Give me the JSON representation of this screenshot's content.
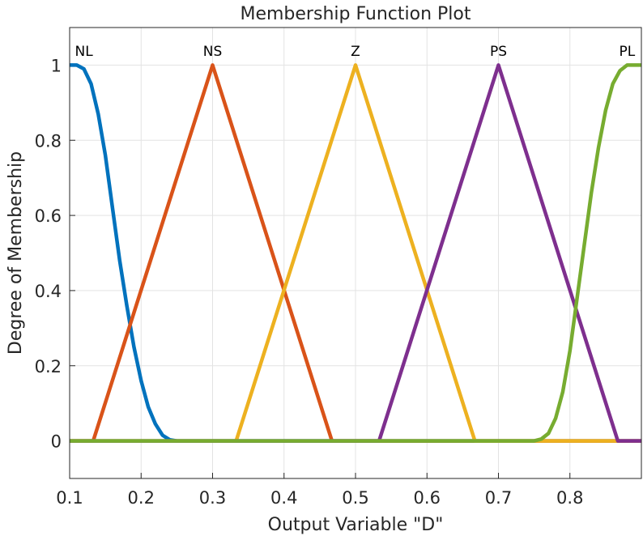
{
  "chart_data": {
    "type": "line",
    "title": "Membership Function Plot",
    "xlabel": "Output Variable \"D\"",
    "ylabel": "Degree of Membership",
    "xlim": [
      0.1,
      0.9
    ],
    "ylim": [
      -0.1,
      1.1
    ],
    "xticks": [
      "0.1",
      "0.2",
      "0.3",
      "0.4",
      "0.5",
      "0.6",
      "0.7",
      "0.8"
    ],
    "yticks": [
      "0",
      "0.2",
      "0.4",
      "0.6",
      "0.8",
      "1"
    ],
    "grid": true,
    "series": [
      {
        "name": "NL",
        "color": "#0072BD",
        "x": [
          0.1,
          0.11,
          0.12,
          0.13,
          0.14,
          0.15,
          0.16,
          0.17,
          0.18,
          0.19,
          0.2,
          0.21,
          0.22,
          0.23,
          0.24,
          0.25,
          0.9
        ],
        "y": [
          1,
          1,
          0.99,
          0.95,
          0.87,
          0.76,
          0.62,
          0.48,
          0.36,
          0.25,
          0.16,
          0.09,
          0.045,
          0.015,
          0.003,
          0,
          0
        ]
      },
      {
        "name": "NS",
        "color": "#D95319",
        "x": [
          0.1,
          0.133,
          0.3,
          0.467,
          0.9
        ],
        "y": [
          0,
          0,
          1,
          0,
          0
        ]
      },
      {
        "name": "Z",
        "color": "#EDB120",
        "x": [
          0.1,
          0.333,
          0.5,
          0.667,
          0.9
        ],
        "y": [
          0,
          0,
          1,
          0,
          0
        ]
      },
      {
        "name": "PS",
        "color": "#7E2F8E",
        "x": [
          0.1,
          0.533,
          0.7,
          0.867,
          0.9
        ],
        "y": [
          0,
          0,
          1,
          0,
          0
        ]
      },
      {
        "name": "PL",
        "color": "#77AC30",
        "x": [
          0.1,
          0.75,
          0.76,
          0.77,
          0.78,
          0.79,
          0.8,
          0.81,
          0.82,
          0.83,
          0.84,
          0.85,
          0.86,
          0.87,
          0.88,
          0.89,
          0.9
        ],
        "y": [
          0,
          0,
          0.005,
          0.02,
          0.06,
          0.13,
          0.24,
          0.38,
          0.52,
          0.66,
          0.78,
          0.88,
          0.95,
          0.985,
          1,
          1,
          1
        ]
      }
    ],
    "labels": [
      {
        "text": "NL",
        "x": 0.12,
        "y": 1.025
      },
      {
        "text": "NS",
        "x": 0.3,
        "y": 1.025
      },
      {
        "text": "Z",
        "x": 0.5,
        "y": 1.025
      },
      {
        "text": "PS",
        "x": 0.7,
        "y": 1.025
      },
      {
        "text": "PL",
        "x": 0.88,
        "y": 1.025
      }
    ]
  }
}
